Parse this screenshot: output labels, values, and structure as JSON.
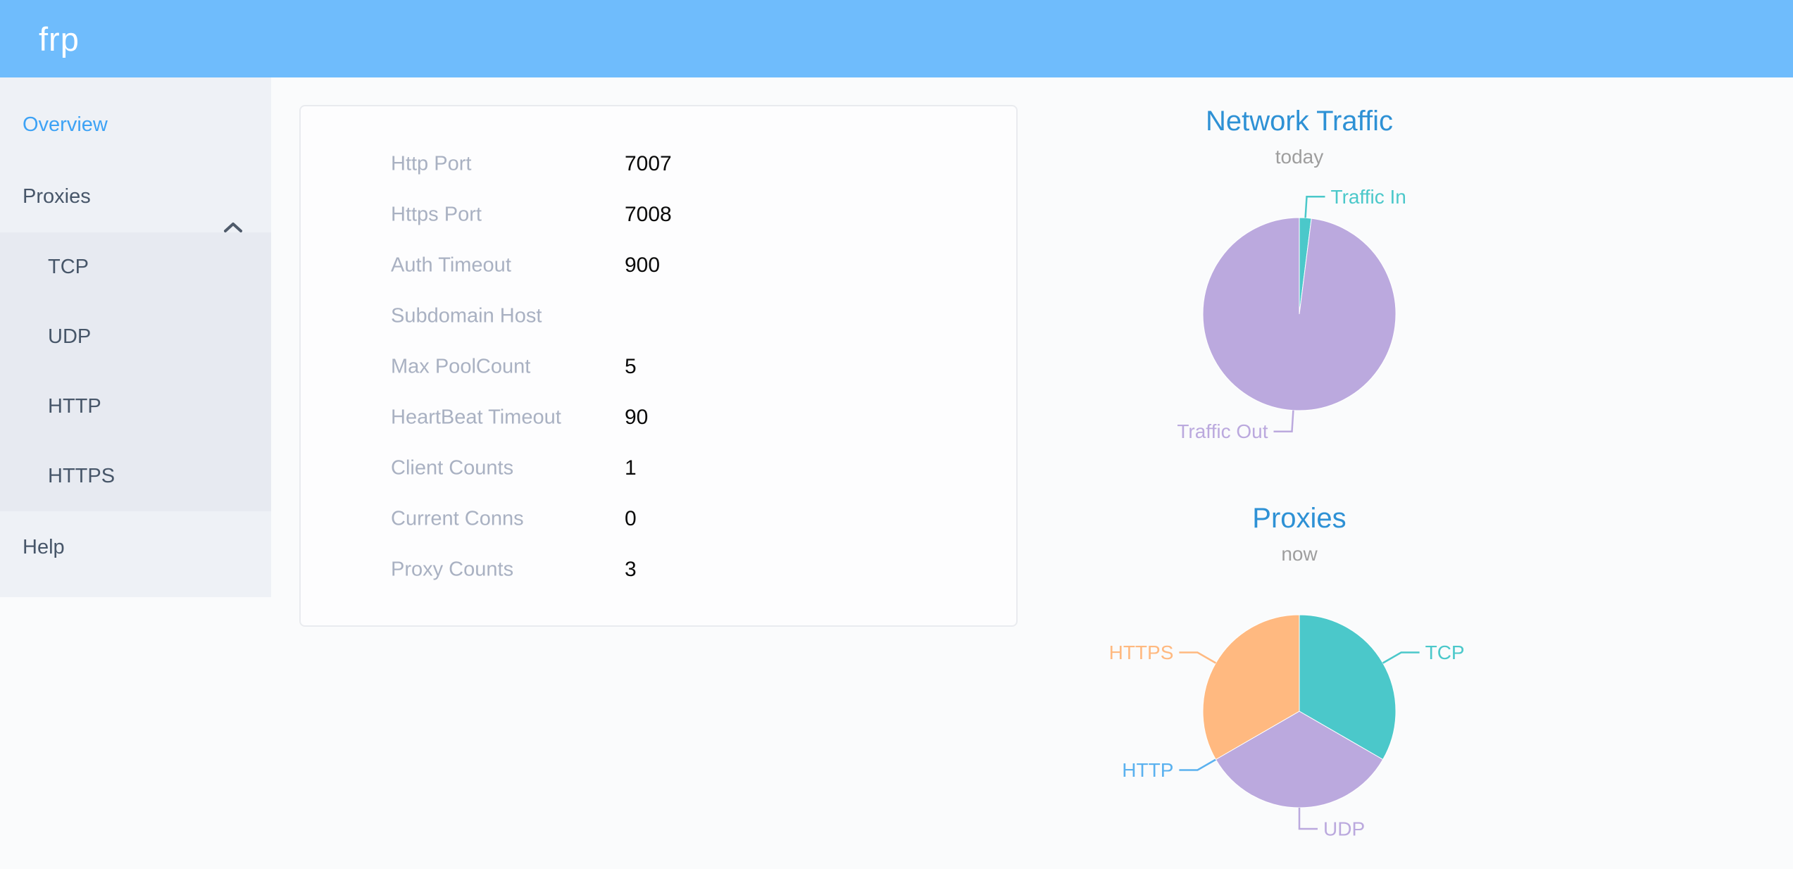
{
  "header": {
    "logo": "frp"
  },
  "sidebar": {
    "overview": "Overview",
    "proxies": "Proxies",
    "proxies_children": [
      "TCP",
      "UDP",
      "HTTP",
      "HTTPS"
    ],
    "help": "Help"
  },
  "overview": {
    "rows": [
      {
        "label": "Http Port",
        "value": "7007"
      },
      {
        "label": "Https Port",
        "value": "7008"
      },
      {
        "label": "Auth Timeout",
        "value": "900"
      },
      {
        "label": "Subdomain Host",
        "value": ""
      },
      {
        "label": "Max PoolCount",
        "value": "5"
      },
      {
        "label": "HeartBeat Timeout",
        "value": "90"
      },
      {
        "label": "Client Counts",
        "value": "1"
      },
      {
        "label": "Current Conns",
        "value": "0"
      },
      {
        "label": "Proxy Counts",
        "value": "3"
      }
    ]
  },
  "chart_data": [
    {
      "type": "pie",
      "title": "Network Traffic",
      "subtitle": "today",
      "legend_position": "none",
      "label_position": "outside",
      "series": [
        {
          "name": "Traffic In",
          "value": 2,
          "color": "#4bc8ca"
        },
        {
          "name": "Traffic Out",
          "value": 98,
          "color": "#bba9de"
        }
      ]
    },
    {
      "type": "pie",
      "title": "Proxies",
      "subtitle": "now",
      "legend_position": "none",
      "label_position": "outside",
      "series": [
        {
          "name": "TCP",
          "value": 1,
          "color": "#4bc8ca"
        },
        {
          "name": "UDP",
          "value": 1,
          "color": "#bba9de"
        },
        {
          "name": "HTTP",
          "value": 0,
          "color": "#5ab1ef"
        },
        {
          "name": "HTTPS",
          "value": 1,
          "color": "#ffb980"
        }
      ]
    }
  ],
  "colors": {
    "header_bg": "#6fbcfc",
    "sidebar_bg": "#eef1f6",
    "submenu_bg": "#e7eaf1",
    "sidebar_text": "#475669",
    "active_item": "#3da2f5",
    "chart_title": "#2e91d5",
    "card_label": "#a9b1c2",
    "teal": "#4bc8ca",
    "purple": "#bba9de",
    "blue": "#5ab1ef",
    "orange": "#ffb980"
  }
}
